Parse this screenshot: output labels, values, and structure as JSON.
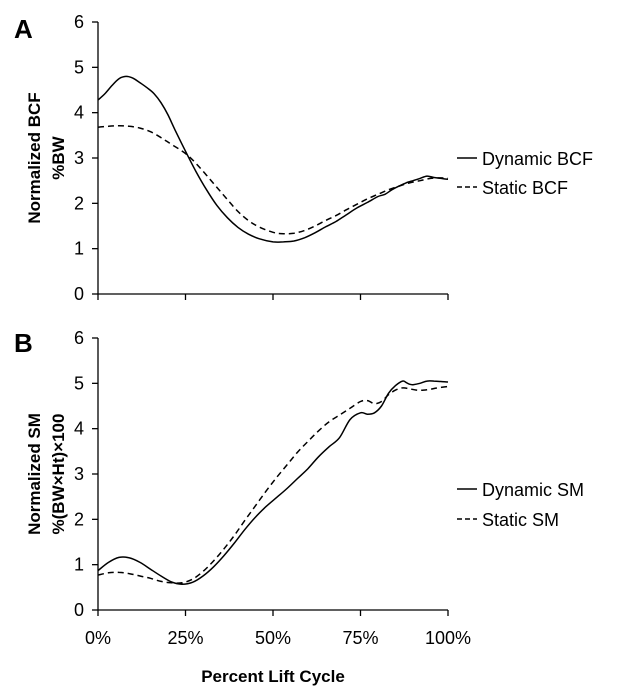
{
  "figure": {
    "xlabel": "Percent Lift Cycle"
  },
  "chart_data": [
    {
      "panel": "A",
      "type": "line",
      "ylabel_lines": [
        "Normalized BCF",
        "%BW"
      ],
      "ylim": [
        0,
        6
      ],
      "yticks": [
        0,
        1,
        2,
        3,
        4,
        5,
        6
      ],
      "xlim": [
        0,
        100
      ],
      "xticks": [
        0,
        25,
        50,
        75,
        100
      ],
      "xtick_labels": [
        "0%",
        "25%",
        "50%",
        "75%",
        "100%"
      ],
      "show_xtick_labels": false,
      "grid": false,
      "legend_position": "right",
      "series": [
        {
          "name": "Dynamic BCF",
          "style": "solid",
          "x": [
            0,
            2,
            4,
            6,
            8,
            10,
            12,
            14,
            16,
            18,
            20,
            22,
            25,
            28,
            31,
            34,
            37,
            40,
            43,
            46,
            50,
            53,
            56,
            59,
            62,
            65,
            68,
            71,
            74,
            77,
            80,
            82,
            84,
            86,
            88,
            90,
            92,
            94,
            96,
            98,
            100
          ],
          "values": [
            4.28,
            4.42,
            4.6,
            4.75,
            4.8,
            4.76,
            4.66,
            4.55,
            4.42,
            4.22,
            3.95,
            3.62,
            3.15,
            2.7,
            2.3,
            1.95,
            1.68,
            1.47,
            1.32,
            1.22,
            1.15,
            1.15,
            1.17,
            1.24,
            1.35,
            1.48,
            1.6,
            1.75,
            1.9,
            2.02,
            2.15,
            2.2,
            2.3,
            2.38,
            2.45,
            2.5,
            2.55,
            2.6,
            2.57,
            2.55,
            2.53
          ]
        },
        {
          "name": "Static BCF",
          "style": "dashed",
          "x": [
            0,
            3,
            6,
            9,
            12,
            15,
            18,
            21,
            25,
            28,
            31,
            34,
            37,
            40,
            43,
            46,
            50,
            53,
            56,
            59,
            62,
            65,
            68,
            71,
            74,
            77,
            80,
            83,
            86,
            89,
            92,
            95,
            98,
            100
          ],
          "values": [
            3.68,
            3.7,
            3.71,
            3.7,
            3.66,
            3.58,
            3.45,
            3.3,
            3.1,
            2.88,
            2.62,
            2.35,
            2.08,
            1.82,
            1.62,
            1.48,
            1.36,
            1.33,
            1.34,
            1.4,
            1.5,
            1.62,
            1.73,
            1.86,
            1.98,
            2.1,
            2.2,
            2.3,
            2.38,
            2.45,
            2.5,
            2.55,
            2.56,
            2.55
          ]
        }
      ]
    },
    {
      "panel": "B",
      "type": "line",
      "ylabel_lines": [
        "Normalized SM",
        "%(BW×Ht)×100"
      ],
      "ylim": [
        0,
        6
      ],
      "yticks": [
        0,
        1,
        2,
        3,
        4,
        5,
        6
      ],
      "xlim": [
        0,
        100
      ],
      "xticks": [
        0,
        25,
        50,
        75,
        100
      ],
      "xtick_labels": [
        "0%",
        "25%",
        "50%",
        "75%",
        "100%"
      ],
      "show_xtick_labels": true,
      "grid": false,
      "legend_position": "right",
      "series": [
        {
          "name": "Dynamic SM",
          "style": "solid",
          "x": [
            0,
            3,
            6,
            9,
            12,
            15,
            18,
            21,
            24,
            27,
            30,
            33,
            36,
            39,
            42,
            45,
            48,
            51,
            54,
            57,
            60,
            63,
            66,
            69,
            72,
            75,
            77,
            79,
            81,
            83,
            85,
            87,
            88,
            89,
            90,
            92,
            94,
            96,
            98,
            100
          ],
          "values": [
            0.87,
            1.05,
            1.16,
            1.15,
            1.05,
            0.9,
            0.75,
            0.62,
            0.57,
            0.61,
            0.75,
            0.95,
            1.2,
            1.48,
            1.78,
            2.05,
            2.28,
            2.48,
            2.68,
            2.9,
            3.12,
            3.38,
            3.6,
            3.8,
            4.2,
            4.35,
            4.32,
            4.35,
            4.5,
            4.78,
            4.95,
            5.05,
            5.02,
            4.98,
            4.97,
            5.0,
            5.05,
            5.05,
            5.04,
            5.03
          ]
        },
        {
          "name": "Static SM",
          "style": "dashed",
          "x": [
            0,
            3,
            6,
            9,
            12,
            15,
            18,
            21,
            24,
            27,
            30,
            33,
            36,
            39,
            42,
            45,
            48,
            51,
            54,
            57,
            60,
            63,
            66,
            69,
            72,
            75,
            77,
            79,
            81,
            83,
            85,
            87,
            89,
            91,
            93,
            95,
            97,
            100
          ],
          "values": [
            0.77,
            0.82,
            0.83,
            0.8,
            0.75,
            0.7,
            0.63,
            0.6,
            0.6,
            0.68,
            0.85,
            1.08,
            1.35,
            1.65,
            1.98,
            2.3,
            2.62,
            2.92,
            3.2,
            3.48,
            3.72,
            3.95,
            4.15,
            4.3,
            4.45,
            4.6,
            4.62,
            4.55,
            4.6,
            4.75,
            4.85,
            4.9,
            4.88,
            4.85,
            4.85,
            4.87,
            4.9,
            4.93
          ]
        }
      ]
    }
  ]
}
